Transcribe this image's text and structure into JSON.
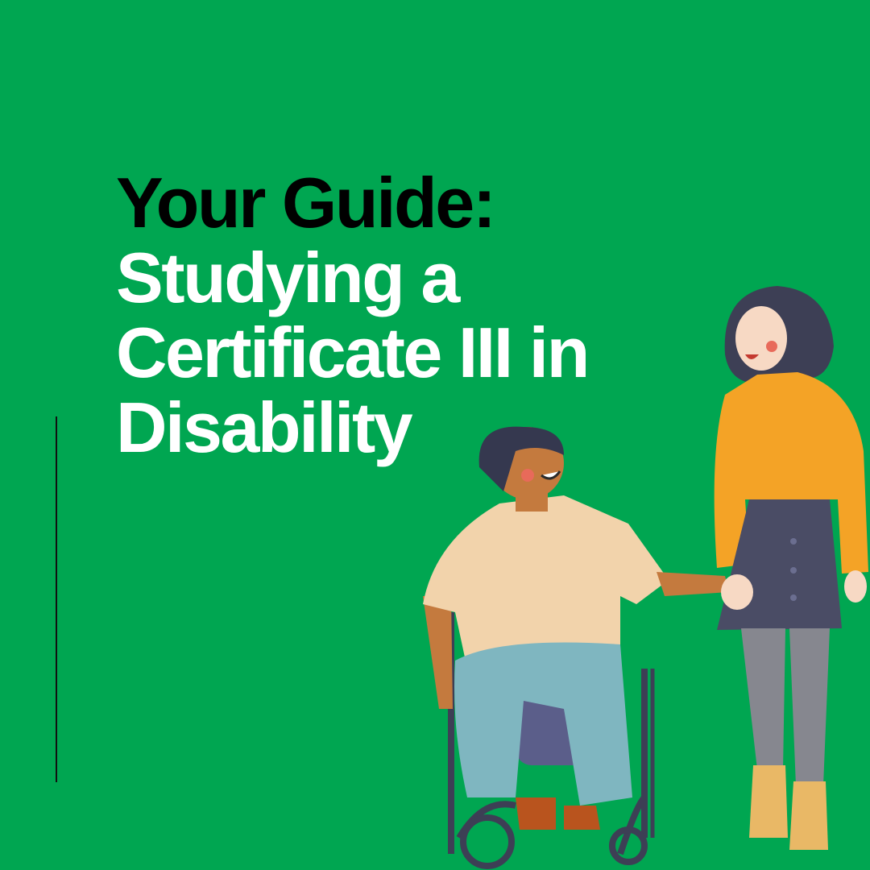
{
  "title": {
    "line1": "Your Guide:",
    "line2": "Studying a",
    "line3": "Certificate III in",
    "line4": "Disability"
  },
  "colors": {
    "background": "#00A651",
    "heading_dark": "#000000",
    "heading_light": "#FFFFFF"
  },
  "illustration": "person-in-wheelchair-holding-hands-with-standing-woman"
}
